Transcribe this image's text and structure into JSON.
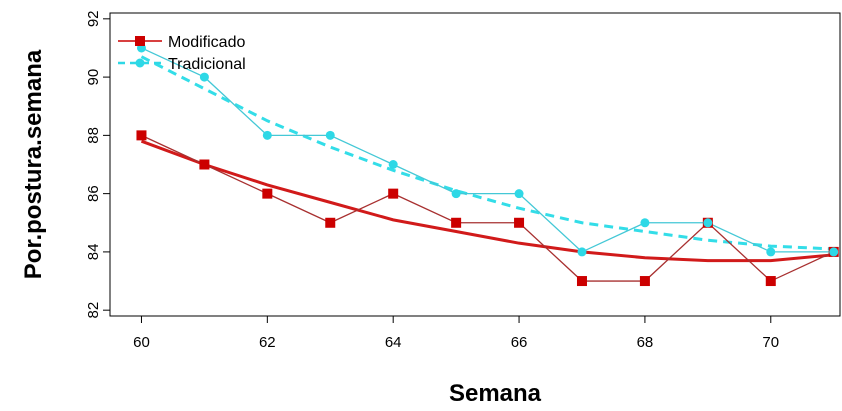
{
  "chart_data": {
    "type": "line",
    "xlabel": "Semana",
    "ylabel": "Por.postura.semana",
    "xlim": [
      59.5,
      71.1
    ],
    "ylim": [
      81.8,
      92.2
    ],
    "xticks": [
      60,
      62,
      64,
      66,
      68,
      70
    ],
    "yticks": [
      82,
      84,
      86,
      88,
      90,
      92
    ],
    "x": [
      60,
      61,
      62,
      63,
      64,
      65,
      66,
      67,
      68,
      69,
      70,
      71
    ],
    "series": [
      {
        "name": "Modificado",
        "color": "#cc0000",
        "marker": "square",
        "values": [
          88,
          87,
          86,
          85,
          86,
          85,
          85,
          83,
          83,
          85,
          83,
          84
        ],
        "trend": [
          87.8,
          87.0,
          86.3,
          85.7,
          85.1,
          84.7,
          84.3,
          84.0,
          83.8,
          83.7,
          83.7,
          83.9
        ]
      },
      {
        "name": "Tradicional",
        "color": "#2ed8e6",
        "marker": "circle",
        "values": [
          91,
          90,
          88,
          88,
          87,
          86,
          86,
          84,
          85,
          85,
          84,
          84
        ],
        "trend": [
          90.7,
          89.6,
          88.5,
          87.6,
          86.8,
          86.1,
          85.5,
          85.0,
          84.7,
          84.4,
          84.2,
          84.1
        ]
      }
    ],
    "legend_position": "top-left",
    "grid": false
  }
}
